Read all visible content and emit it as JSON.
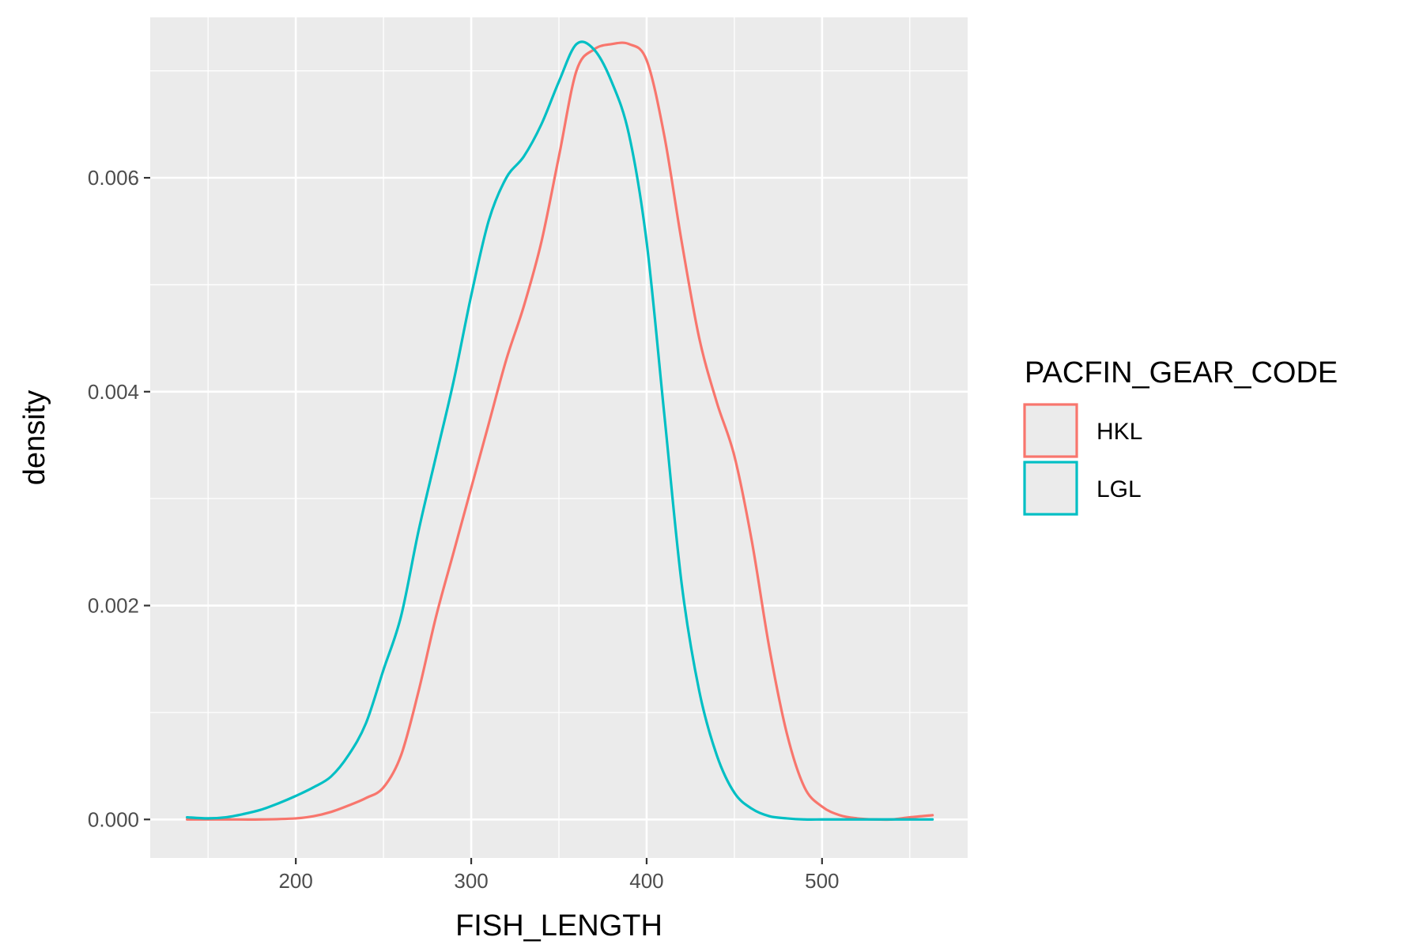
{
  "chart_data": {
    "type": "line",
    "xlabel": "FISH_LENGTH",
    "ylabel": "density",
    "xlim": [
      117,
      583
    ],
    "ylim": [
      -0.00036,
      0.0075
    ],
    "x_ticks": [
      200,
      300,
      400,
      500
    ],
    "x_tick_labels": [
      "200",
      "300",
      "400",
      "500"
    ],
    "y_ticks": [
      0,
      0.002,
      0.004,
      0.006
    ],
    "y_tick_labels": [
      "0.000",
      "0.002",
      "0.004",
      "0.006"
    ],
    "grid": true,
    "legend": {
      "title": "PACFIN_GEAR_CODE",
      "position": "right"
    },
    "series": [
      {
        "name": "HKL",
        "color": "#F8766D",
        "x": [
          138,
          160,
          180,
          200,
          210,
          220,
          230,
          240,
          250,
          260,
          270,
          280,
          290,
          300,
          310,
          320,
          330,
          340,
          350,
          360,
          370,
          380,
          390,
          400,
          410,
          420,
          430,
          440,
          450,
          460,
          470,
          480,
          490,
          500,
          510,
          520,
          530,
          540,
          550,
          563
        ],
        "y": [
          0.0,
          0.0,
          0.0,
          1e-05,
          3e-05,
          7e-05,
          0.00013,
          0.0002,
          0.0003,
          0.0006,
          0.0012,
          0.0019,
          0.0025,
          0.0031,
          0.0037,
          0.0043,
          0.0048,
          0.0054,
          0.0062,
          0.007,
          0.0072,
          0.00725,
          0.00725,
          0.0071,
          0.0064,
          0.0054,
          0.0045,
          0.0039,
          0.0034,
          0.0026,
          0.0016,
          0.0008,
          0.0003,
          0.00012,
          4e-05,
          1e-05,
          0.0,
          0.0,
          2e-05,
          4e-05
        ]
      },
      {
        "name": "LGL",
        "color": "#00BFC4",
        "x": [
          138,
          150,
          160,
          170,
          180,
          190,
          200,
          210,
          220,
          230,
          240,
          250,
          260,
          270,
          280,
          290,
          300,
          310,
          320,
          330,
          340,
          350,
          360,
          370,
          380,
          390,
          400,
          410,
          420,
          430,
          440,
          450,
          460,
          470,
          480,
          490,
          500,
          510,
          520,
          540,
          563
        ],
        "y": [
          2e-05,
          1e-05,
          2e-05,
          5e-05,
          9e-05,
          0.00015,
          0.00022,
          0.0003,
          0.0004,
          0.0006,
          0.0009,
          0.0014,
          0.0019,
          0.0027,
          0.0034,
          0.0041,
          0.0049,
          0.0056,
          0.006,
          0.0062,
          0.0065,
          0.0069,
          0.00725,
          0.0072,
          0.0069,
          0.0064,
          0.0054,
          0.0038,
          0.0022,
          0.0012,
          0.0006,
          0.00025,
          0.0001,
          3e-05,
          1e-05,
          0.0,
          0.0,
          0.0,
          0.0,
          0.0,
          0.0
        ]
      }
    ]
  }
}
